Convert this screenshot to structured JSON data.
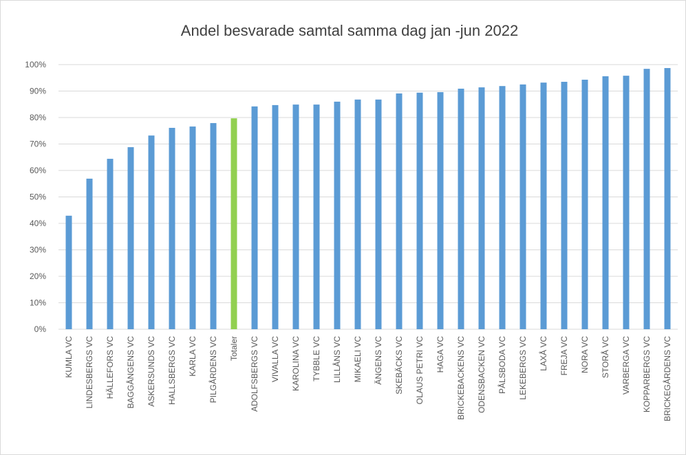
{
  "chart_data": {
    "type": "bar",
    "title": "Andel besvarade samtal samma dag jan -jun 2022",
    "categories": [
      "KUMLA VC",
      "LINDESBERGS VC",
      "HÄLLEFORS VC",
      "BAGGÅNGENS VC",
      "ASKERSUNDS VC",
      "HALLSBERGS VC",
      "KARLA VC",
      "PILGÅRDENS VC",
      "Totaler",
      "ADOLFSBERGS VC",
      "VIVALLA VC",
      "KAROLINA VC",
      "TYBBLE VC",
      "LILLÅNS VC",
      "MIKAELI VC",
      "ÄNGENS VC",
      "SKEBÄCKS VC",
      "OLAUS PETRI VC",
      "HAGA VC",
      "BRICKEBACKENS VC",
      "ODENSBACKEN VC",
      "PÅLSBODA VC",
      "LEKEBERGS VC",
      "LAXÅ VC",
      "FREJA VC",
      "NORA VC",
      "STORÅ VC",
      "VARBERGA VC",
      "KOPPARBERGS VC",
      "BRICKEGÅRDENS VC"
    ],
    "values": [
      42.9,
      56.9,
      64.4,
      68.8,
      73.2,
      76.1,
      76.6,
      77.9,
      79.7,
      84.2,
      84.7,
      84.9,
      84.9,
      86.0,
      86.8,
      86.8,
      89.1,
      89.4,
      89.6,
      90.9,
      91.4,
      91.9,
      92.5,
      93.2,
      93.5,
      94.3,
      95.6,
      95.8,
      98.4,
      98.7
    ],
    "colors": [
      "#5b9bd5",
      "#5b9bd5",
      "#5b9bd5",
      "#5b9bd5",
      "#5b9bd5",
      "#5b9bd5",
      "#5b9bd5",
      "#5b9bd5",
      "#92d050",
      "#5b9bd5",
      "#5b9bd5",
      "#5b9bd5",
      "#5b9bd5",
      "#5b9bd5",
      "#5b9bd5",
      "#5b9bd5",
      "#5b9bd5",
      "#5b9bd5",
      "#5b9bd5",
      "#5b9bd5",
      "#5b9bd5",
      "#5b9bd5",
      "#5b9bd5",
      "#5b9bd5",
      "#5b9bd5",
      "#5b9bd5",
      "#5b9bd5",
      "#5b9bd5",
      "#5b9bd5",
      "#5b9bd5"
    ],
    "ylim": [
      0,
      100
    ],
    "yticks": [
      {
        "value": 0,
        "label": "0%"
      },
      {
        "value": 10,
        "label": "10%"
      },
      {
        "value": 20,
        "label": "20%"
      },
      {
        "value": 30,
        "label": "30%"
      },
      {
        "value": 40,
        "label": "40%"
      },
      {
        "value": 50,
        "label": "50%"
      },
      {
        "value": 60,
        "label": "60%"
      },
      {
        "value": 70,
        "label": "70%"
      },
      {
        "value": 80,
        "label": "80%"
      },
      {
        "value": 90,
        "label": "90%"
      },
      {
        "value": 100,
        "label": "100%"
      }
    ],
    "grid": true
  }
}
